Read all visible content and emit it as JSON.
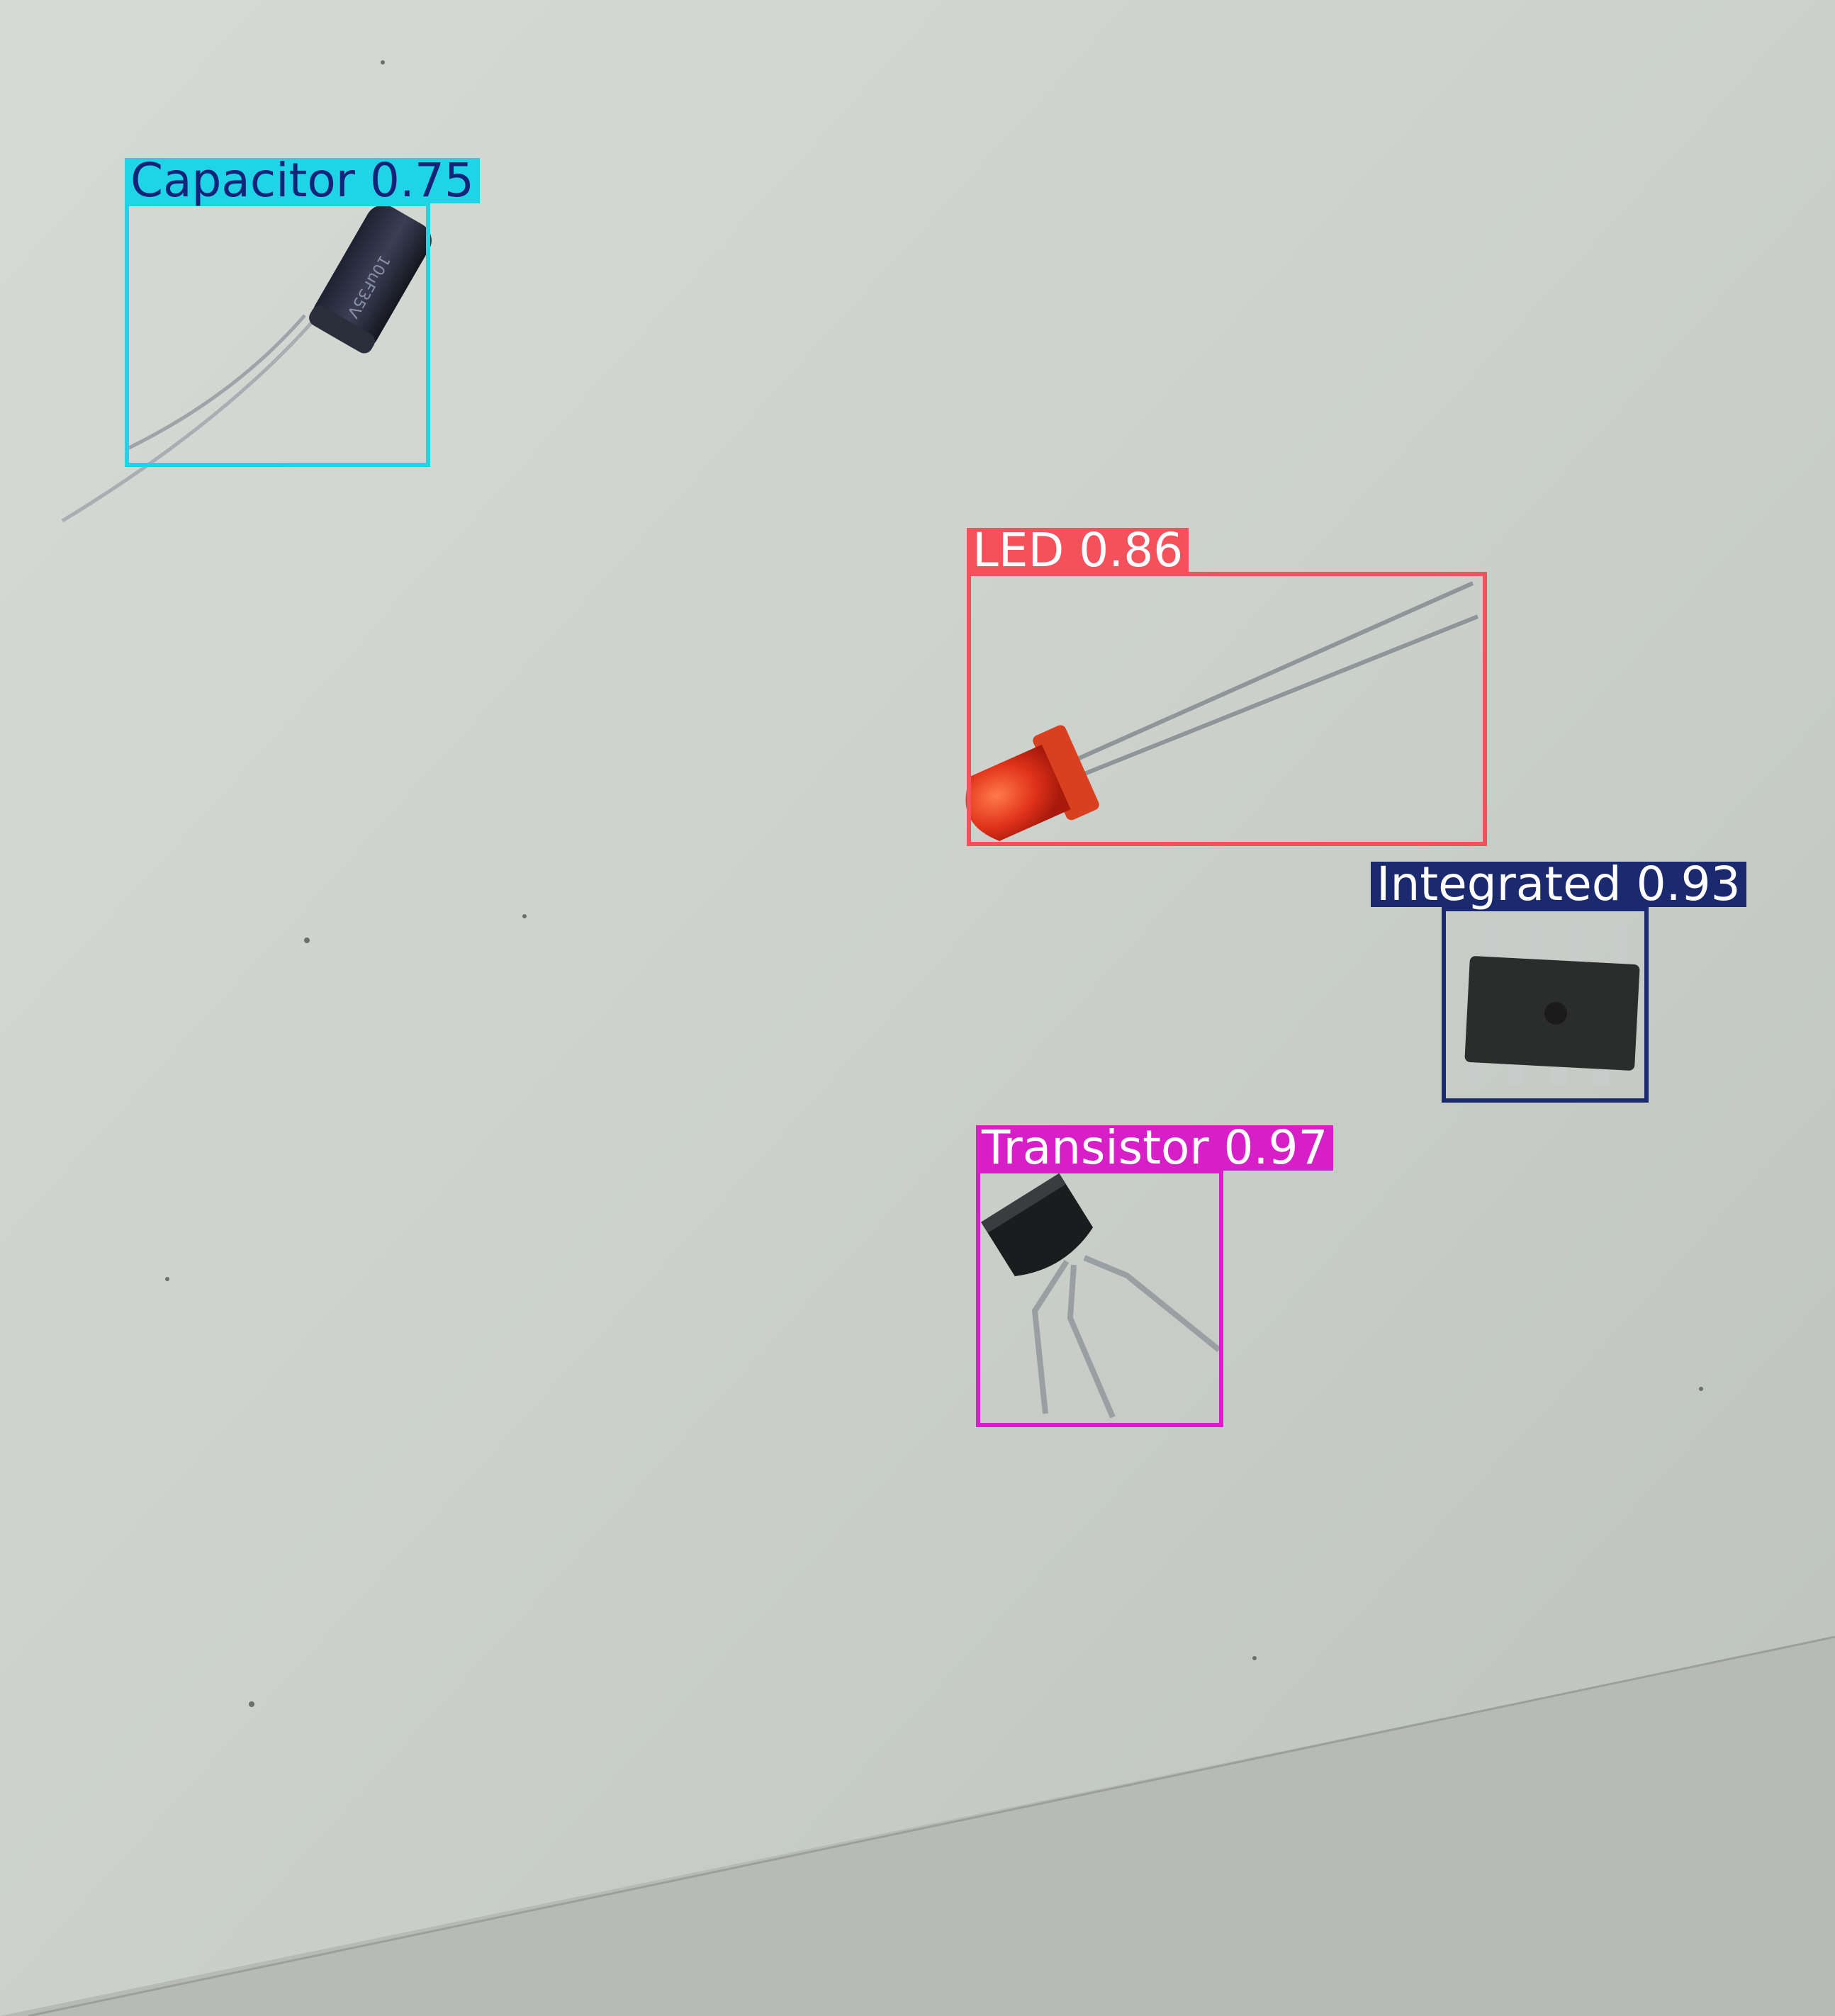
{
  "detections": [
    {
      "id": "capacitor",
      "label": "Capacitor",
      "confidence": "0.75",
      "box_color": "#1fd4e6",
      "label_bg": "#1fd4e6",
      "label_text_color": "#14237a"
    },
    {
      "id": "led",
      "label": "LED",
      "confidence": "0.86",
      "box_color": "#f4515c",
      "label_bg": "#f4515c",
      "label_text_color": "#ffffff"
    },
    {
      "id": "integrated",
      "label": "Integrated",
      "confidence": "0.93",
      "box_color": "#1b2a6e",
      "label_bg": "#1b2a6e",
      "label_text_color": "#ffffff"
    },
    {
      "id": "transistor",
      "label": "Transistor",
      "confidence": "0.97",
      "box_color": "#d61fc6",
      "label_bg": "#d61fc6",
      "label_text_color": "#ffffff"
    }
  ],
  "scene": {
    "background": "#c9cec8",
    "objects": [
      "electrolytic-capacitor",
      "red-led",
      "dip8-integrated-circuit",
      "to92-transistor"
    ]
  }
}
